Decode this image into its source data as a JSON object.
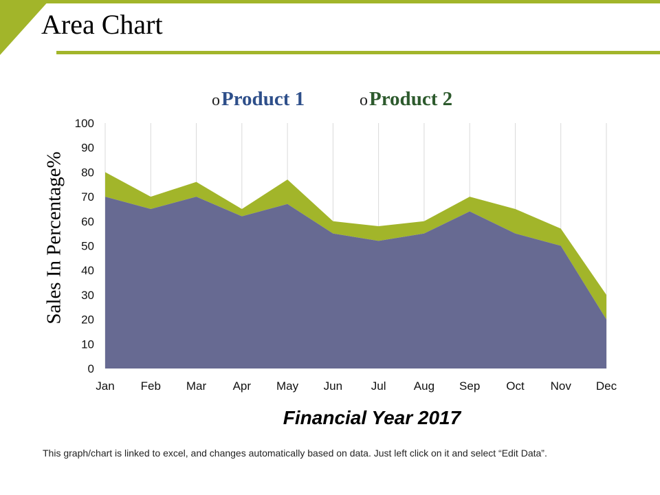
{
  "header": {
    "title": "Area Chart"
  },
  "colors": {
    "accent": "#a2b52a",
    "product1": "#676a92",
    "product2": "#a2b52a"
  },
  "legend": {
    "marker": "o",
    "items": [
      "Product 1",
      "Product 2"
    ]
  },
  "chart_data": {
    "type": "area",
    "stacked": true,
    "xlabel": "Financial Year 2017",
    "ylabel": "Sales In Percentage%",
    "ylim": [
      0,
      100
    ],
    "yticks": [
      0,
      10,
      20,
      30,
      40,
      50,
      60,
      70,
      80,
      90,
      100
    ],
    "categories": [
      "Jan",
      "Feb",
      "Mar",
      "Apr",
      "May",
      "Jun",
      "Jul",
      "Aug",
      "Sep",
      "Oct",
      "Nov",
      "Dec"
    ],
    "grid": "vertical",
    "legend_position": "top",
    "series": [
      {
        "name": "Product 1",
        "values": [
          70,
          65,
          70,
          62,
          67,
          55,
          52,
          55,
          64,
          55,
          50,
          20
        ]
      },
      {
        "name": "Product 2",
        "values": [
          10,
          5,
          6,
          3,
          10,
          5,
          6,
          5,
          6,
          10,
          7,
          10
        ]
      }
    ]
  },
  "footnote": "This graph/chart is linked to excel, and changes automatically based on data. Just left click on it and select “Edit Data”."
}
